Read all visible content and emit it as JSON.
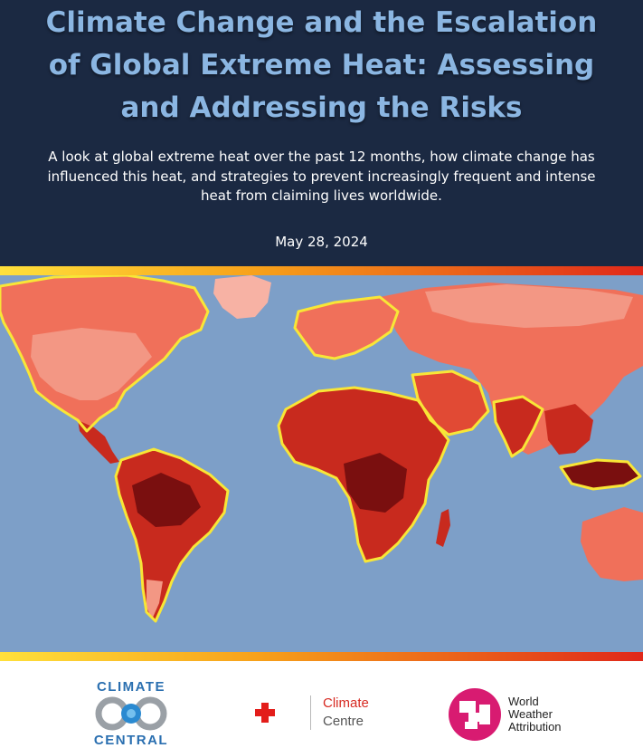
{
  "report": {
    "title": "Climate Change and the Escalation of Global Extreme Heat: Assessing and Addressing the Risks",
    "subtitle": "A look at global extreme heat over the past 12 months, how climate change has influenced this heat, and strategies to prevent increasingly frequent and intense heat from claiming lives worldwide.",
    "date": "May 28, 2024"
  },
  "colors": {
    "header_bg": "#1b2942",
    "title": "#8bb6e2",
    "ocean": "#7d9fc8",
    "land_warm": "#f0705a",
    "land_hot": "#c82a1e",
    "land_extreme": "#7a0f0f",
    "region_outline": "#f8e637",
    "band_gradient": [
      "#ffe03b",
      "#f7a11a",
      "#e0281a"
    ]
  },
  "logos": {
    "climate_central": {
      "word1": "CLIMATE",
      "word2": "CENTRAL"
    },
    "climate_centre": {
      "line1": "Climate",
      "line2": "Centre"
    },
    "world_weather_attribution": {
      "line1": "World",
      "line2": "Weather",
      "line3": "Attribution"
    }
  }
}
